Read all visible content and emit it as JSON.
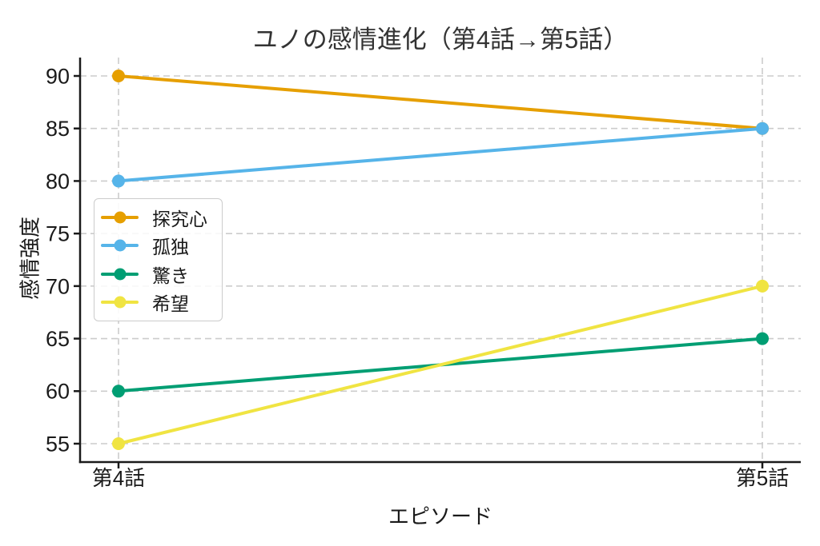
{
  "chart_data": {
    "type": "line",
    "title": "ユノの感情進化（第4話→第5話）",
    "xlabel": "エピソード",
    "ylabel": "感情強度",
    "categories": [
      "第4話",
      "第5話"
    ],
    "series": [
      {
        "name": "探究心",
        "color": "#E69F00",
        "values": [
          90,
          85
        ]
      },
      {
        "name": "孤独",
        "color": "#56B4E9",
        "values": [
          80,
          85
        ]
      },
      {
        "name": "驚き",
        "color": "#009E73",
        "values": [
          60,
          65
        ]
      },
      {
        "name": "希望",
        "color": "#F0E442",
        "values": [
          55,
          70
        ]
      }
    ],
    "yticks": [
      55,
      60,
      65,
      70,
      75,
      80,
      85,
      90
    ],
    "ylim": [
      53.25,
      91.75
    ],
    "grid": true,
    "grid_style": "dashed",
    "grid_color": "#cccccc",
    "axis_color": "#1a1a1a",
    "legend_position": "upper-left-inside",
    "marker": "circle",
    "background": "#ffffff"
  }
}
